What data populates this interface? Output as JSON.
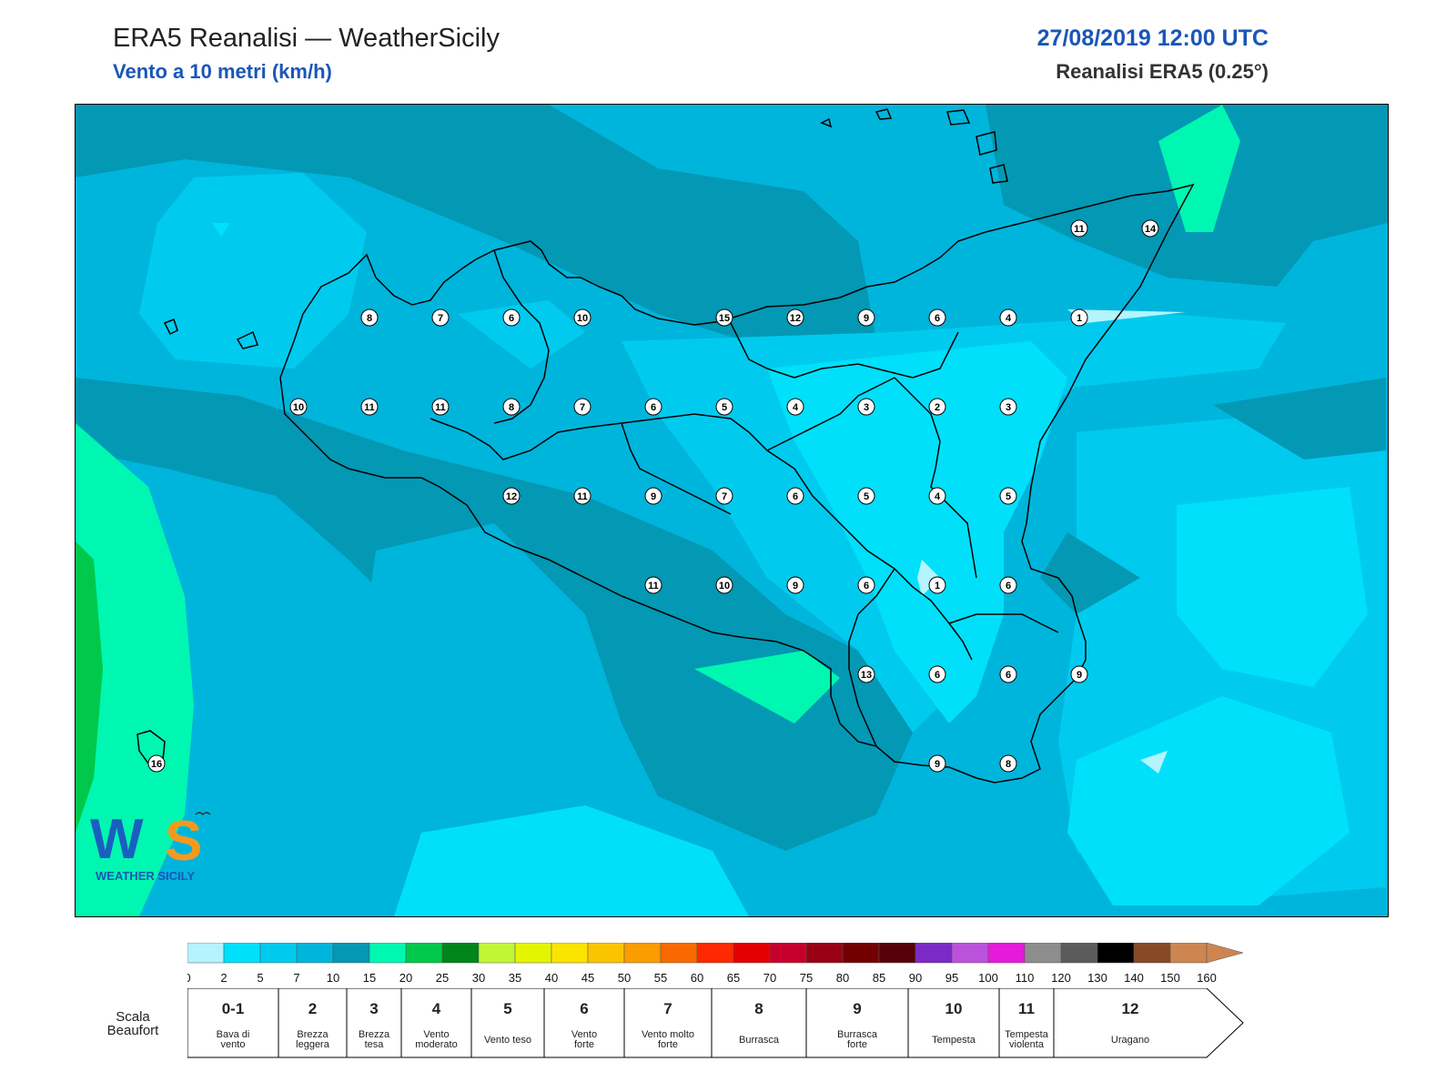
{
  "header": {
    "title": "ERA5 Reanalisi — WeatherSicily",
    "subtitle": "Vento a 10 metri (km/h)",
    "datetime": "27/08/2019 12:00 UTC",
    "model": "Reanalisi ERA5 (0.25°)"
  },
  "logo": {
    "text": "WEATHER SICILY",
    "mark": "WS"
  },
  "stations": [
    {
      "label": "8",
      "lon": 13.0,
      "lat": 38.25
    },
    {
      "label": "7",
      "lon": 13.25,
      "lat": 38.25
    },
    {
      "label": "6",
      "lon": 13.5,
      "lat": 38.25
    },
    {
      "label": "10",
      "lon": 13.75,
      "lat": 38.25
    },
    {
      "label": "15",
      "lon": 14.25,
      "lat": 38.25
    },
    {
      "label": "12",
      "lon": 14.5,
      "lat": 38.25
    },
    {
      "label": "9",
      "lon": 14.75,
      "lat": 38.25
    },
    {
      "label": "6",
      "lon": 15.0,
      "lat": 38.25
    },
    {
      "label": "4",
      "lon": 15.25,
      "lat": 38.25
    },
    {
      "label": "1",
      "lon": 15.5,
      "lat": 38.25
    },
    {
      "label": "11",
      "lon": 15.5,
      "lat": 38.5
    },
    {
      "label": "14",
      "lon": 15.75,
      "lat": 38.5
    },
    {
      "label": "10",
      "lon": 12.75,
      "lat": 38.0
    },
    {
      "label": "11",
      "lon": 13.0,
      "lat": 38.0
    },
    {
      "label": "11",
      "lon": 13.25,
      "lat": 38.0
    },
    {
      "label": "8",
      "lon": 13.5,
      "lat": 38.0
    },
    {
      "label": "7",
      "lon": 13.75,
      "lat": 38.0
    },
    {
      "label": "6",
      "lon": 14.0,
      "lat": 38.0
    },
    {
      "label": "5",
      "lon": 14.25,
      "lat": 38.0
    },
    {
      "label": "4",
      "lon": 14.5,
      "lat": 38.0
    },
    {
      "label": "3",
      "lon": 14.75,
      "lat": 38.0
    },
    {
      "label": "2",
      "lon": 15.0,
      "lat": 38.0
    },
    {
      "label": "3",
      "lon": 15.25,
      "lat": 38.0
    },
    {
      "label": "12",
      "lon": 13.5,
      "lat": 37.75
    },
    {
      "label": "11",
      "lon": 13.75,
      "lat": 37.75
    },
    {
      "label": "9",
      "lon": 14.0,
      "lat": 37.75
    },
    {
      "label": "7",
      "lon": 14.25,
      "lat": 37.75
    },
    {
      "label": "6",
      "lon": 14.5,
      "lat": 37.75
    },
    {
      "label": "5",
      "lon": 14.75,
      "lat": 37.75
    },
    {
      "label": "4",
      "lon": 15.0,
      "lat": 37.75
    },
    {
      "label": "5",
      "lon": 15.25,
      "lat": 37.75
    },
    {
      "label": "11",
      "lon": 14.0,
      "lat": 37.5
    },
    {
      "label": "10",
      "lon": 14.25,
      "lat": 37.5
    },
    {
      "label": "9",
      "lon": 14.5,
      "lat": 37.5
    },
    {
      "label": "6",
      "lon": 14.75,
      "lat": 37.5
    },
    {
      "label": "1",
      "lon": 15.0,
      "lat": 37.5
    },
    {
      "label": "6",
      "lon": 15.25,
      "lat": 37.5
    },
    {
      "label": "13",
      "lon": 14.75,
      "lat": 37.25
    },
    {
      "label": "6",
      "lon": 15.0,
      "lat": 37.25
    },
    {
      "label": "6",
      "lon": 15.25,
      "lat": 37.25
    },
    {
      "label": "9",
      "lon": 15.5,
      "lat": 37.25
    },
    {
      "label": "16",
      "lon": 12.25,
      "lat": 37.0
    },
    {
      "label": "9",
      "lon": 15.0,
      "lat": 37.0
    },
    {
      "label": "8",
      "lon": 15.25,
      "lat": 37.0
    }
  ],
  "colorbar": {
    "ticks": [
      "0",
      "2",
      "5",
      "7",
      "10",
      "15",
      "20",
      "25",
      "30",
      "35",
      "40",
      "45",
      "50",
      "55",
      "60",
      "65",
      "70",
      "75",
      "80",
      "85",
      "90",
      "95",
      "100",
      "110",
      "120",
      "130",
      "140",
      "150",
      "160"
    ],
    "colors": [
      "#b3f4fe",
      "#00e0fb",
      "#00cbef",
      "#00b5dc",
      "#0398b4",
      "#00f7b1",
      "#00c84a",
      "#00851a",
      "#c0f734",
      "#e4f503",
      "#fbe400",
      "#fbc400",
      "#fb9c00",
      "#f96900",
      "#ff2800",
      "#e40000",
      "#c6002a",
      "#980013",
      "#730000",
      "#560009",
      "#7b2ac8",
      "#bb52dc",
      "#e61ad9",
      "#8d8d8d",
      "#5b5b5b",
      "#000000",
      "#874926",
      "#cd8650"
    ]
  },
  "beaufort": {
    "title": "Scala Beaufort",
    "levels": [
      {
        "num": "0-1",
        "desc": [
          "Bava di",
          "vento"
        ]
      },
      {
        "num": "2",
        "desc": [
          "Brezza",
          "leggera"
        ]
      },
      {
        "num": "3",
        "desc": [
          "Brezza",
          "tesa"
        ]
      },
      {
        "num": "4",
        "desc": [
          "Vento",
          "moderato"
        ]
      },
      {
        "num": "5",
        "desc": [
          "Vento teso"
        ]
      },
      {
        "num": "6",
        "desc": [
          "Vento",
          "forte"
        ]
      },
      {
        "num": "7",
        "desc": [
          "Vento molto",
          "forte"
        ]
      },
      {
        "num": "8",
        "desc": [
          "Burrasca"
        ]
      },
      {
        "num": "9",
        "desc": [
          "Burrasca",
          "forte"
        ]
      },
      {
        "num": "10",
        "desc": [
          "Tempesta"
        ]
      },
      {
        "num": "11",
        "desc": [
          "Tempesta",
          "violenta"
        ]
      },
      {
        "num": "12",
        "desc": [
          "Uragano"
        ]
      }
    ]
  }
}
